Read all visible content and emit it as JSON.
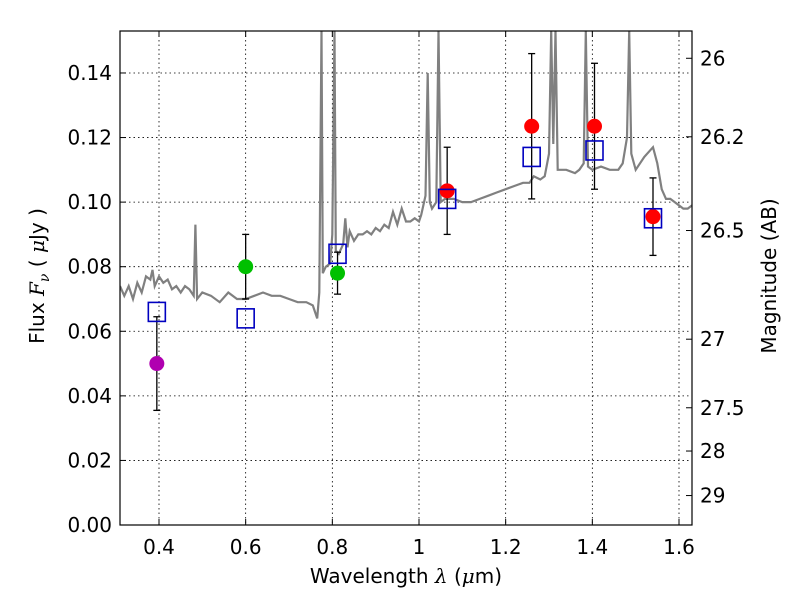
{
  "chart_data": {
    "type": "scatter",
    "xlabel": "Wavelength",
    "xlabel_symbol": "λ",
    "xlabel_unit_open": "(",
    "xlabel_unit_mu": "μ",
    "xlabel_unit_rest": "m)",
    "ylabel": "Flux",
    "ylabel_symbol": "F",
    "ylabel_subscript": "ν",
    "ylabel_unit_open": "(",
    "ylabel_unit_mu": "μ",
    "ylabel_unit_rest": "Jy )",
    "ylabel_right": "Magnitude (AB)",
    "xlim": [
      0.31,
      1.63
    ],
    "ylim": [
      0.0,
      0.153
    ],
    "grid": true,
    "x_ticks": [
      {
        "v": 0.4,
        "label": "0.4"
      },
      {
        "v": 0.6,
        "label": "0.6"
      },
      {
        "v": 0.8,
        "label": "0.8"
      },
      {
        "v": 1.0,
        "label": "1"
      },
      {
        "v": 1.2,
        "label": "1.2"
      },
      {
        "v": 1.4,
        "label": "1.4"
      },
      {
        "v": 1.6,
        "label": "1.6"
      }
    ],
    "y_ticks": [
      {
        "v": 0.0,
        "label": "0.00"
      },
      {
        "v": 0.02,
        "label": "0.02"
      },
      {
        "v": 0.04,
        "label": "0.04"
      },
      {
        "v": 0.06,
        "label": "0.06"
      },
      {
        "v": 0.08,
        "label": "0.08"
      },
      {
        "v": 0.1,
        "label": "0.10"
      },
      {
        "v": 0.12,
        "label": "0.12"
      },
      {
        "v": 0.14,
        "label": "0.14"
      }
    ],
    "mag_ticks": [
      {
        "mag": 26,
        "label": "26"
      },
      {
        "mag": 26.2,
        "label": "26.2"
      },
      {
        "mag": 26.5,
        "label": "26.5"
      },
      {
        "mag": 27,
        "label": "27"
      },
      {
        "mag": 27.5,
        "label": "27.5"
      },
      {
        "mag": 28,
        "label": "28"
      },
      {
        "mag": 29,
        "label": "29"
      }
    ],
    "observed": [
      {
        "x": 0.395,
        "y": 0.05,
        "err": 0.0145,
        "color": "#b000b0"
      },
      {
        "x": 0.6,
        "y": 0.08,
        "err": 0.01,
        "color": "#00c000"
      },
      {
        "x": 0.812,
        "y": 0.078,
        "err": 0.0065,
        "color": "#00c000"
      },
      {
        "x": 1.065,
        "y": 0.1035,
        "err": 0.0135,
        "color": "#ff0000"
      },
      {
        "x": 1.26,
        "y": 0.1235,
        "err": 0.0225,
        "color": "#ff0000"
      },
      {
        "x": 1.405,
        "y": 0.1235,
        "err": 0.0195,
        "color": "#ff0000"
      },
      {
        "x": 1.54,
        "y": 0.0955,
        "err": 0.012,
        "color": "#ff0000"
      }
    ],
    "model_points": [
      {
        "x": 0.395,
        "y": 0.066
      },
      {
        "x": 0.6,
        "y": 0.064
      },
      {
        "x": 0.812,
        "y": 0.084
      },
      {
        "x": 1.065,
        "y": 0.101
      },
      {
        "x": 1.26,
        "y": 0.114
      },
      {
        "x": 1.405,
        "y": 0.116
      },
      {
        "x": 1.54,
        "y": 0.095
      }
    ],
    "model_spectrum": [
      [
        0.31,
        0.074
      ],
      [
        0.32,
        0.071
      ],
      [
        0.33,
        0.074
      ],
      [
        0.34,
        0.07
      ],
      [
        0.35,
        0.075
      ],
      [
        0.36,
        0.072
      ],
      [
        0.37,
        0.077
      ],
      [
        0.38,
        0.076
      ],
      [
        0.385,
        0.079
      ],
      [
        0.39,
        0.074
      ],
      [
        0.4,
        0.077
      ],
      [
        0.41,
        0.075
      ],
      [
        0.42,
        0.076
      ],
      [
        0.43,
        0.073
      ],
      [
        0.44,
        0.074
      ],
      [
        0.45,
        0.072
      ],
      [
        0.46,
        0.074
      ],
      [
        0.47,
        0.073
      ],
      [
        0.48,
        0.071
      ],
      [
        0.484,
        0.093
      ],
      [
        0.488,
        0.07
      ],
      [
        0.5,
        0.072
      ],
      [
        0.52,
        0.071
      ],
      [
        0.54,
        0.069
      ],
      [
        0.56,
        0.072
      ],
      [
        0.58,
        0.07
      ],
      [
        0.6,
        0.07
      ],
      [
        0.62,
        0.071
      ],
      [
        0.64,
        0.072
      ],
      [
        0.66,
        0.071
      ],
      [
        0.68,
        0.071
      ],
      [
        0.7,
        0.07
      ],
      [
        0.72,
        0.069
      ],
      [
        0.74,
        0.069
      ],
      [
        0.755,
        0.068
      ],
      [
        0.76,
        0.066
      ],
      [
        0.765,
        0.064
      ],
      [
        0.77,
        0.072
      ],
      [
        0.775,
        0.153
      ],
      [
        0.778,
        0.078
      ],
      [
        0.785,
        0.08
      ],
      [
        0.795,
        0.081
      ],
      [
        0.8,
        0.09
      ],
      [
        0.805,
        0.153
      ],
      [
        0.808,
        0.085
      ],
      [
        0.815,
        0.084
      ],
      [
        0.825,
        0.087
      ],
      [
        0.83,
        0.095
      ],
      [
        0.835,
        0.086
      ],
      [
        0.84,
        0.091
      ],
      [
        0.85,
        0.088
      ],
      [
        0.86,
        0.09
      ],
      [
        0.87,
        0.09
      ],
      [
        0.88,
        0.091
      ],
      [
        0.89,
        0.09
      ],
      [
        0.9,
        0.092
      ],
      [
        0.91,
        0.091
      ],
      [
        0.92,
        0.093
      ],
      [
        0.93,
        0.092
      ],
      [
        0.94,
        0.097
      ],
      [
        0.95,
        0.093
      ],
      [
        0.96,
        0.098
      ],
      [
        0.97,
        0.094
      ],
      [
        0.98,
        0.094
      ],
      [
        0.99,
        0.095
      ],
      [
        1.0,
        0.094
      ],
      [
        1.005,
        0.096
      ],
      [
        1.015,
        0.102
      ],
      [
        1.02,
        0.14
      ],
      [
        1.025,
        0.1
      ],
      [
        1.03,
        0.098
      ],
      [
        1.04,
        0.1
      ],
      [
        1.045,
        0.153
      ],
      [
        1.05,
        0.1
      ],
      [
        1.06,
        0.101
      ],
      [
        1.08,
        0.101
      ],
      [
        1.1,
        0.1
      ],
      [
        1.12,
        0.1
      ],
      [
        1.14,
        0.101
      ],
      [
        1.16,
        0.102
      ],
      [
        1.18,
        0.103
      ],
      [
        1.2,
        0.104
      ],
      [
        1.22,
        0.105
      ],
      [
        1.24,
        0.106
      ],
      [
        1.255,
        0.106
      ],
      [
        1.265,
        0.108
      ],
      [
        1.28,
        0.107
      ],
      [
        1.29,
        0.108
      ],
      [
        1.3,
        0.115
      ],
      [
        1.305,
        0.153
      ],
      [
        1.31,
        0.118
      ],
      [
        1.315,
        0.153
      ],
      [
        1.32,
        0.11
      ],
      [
        1.34,
        0.11
      ],
      [
        1.36,
        0.109
      ],
      [
        1.37,
        0.11
      ],
      [
        1.38,
        0.112
      ],
      [
        1.385,
        0.153
      ],
      [
        1.39,
        0.111
      ],
      [
        1.4,
        0.11
      ],
      [
        1.42,
        0.111
      ],
      [
        1.44,
        0.11
      ],
      [
        1.46,
        0.11
      ],
      [
        1.47,
        0.112
      ],
      [
        1.48,
        0.12
      ],
      [
        1.485,
        0.153
      ],
      [
        1.49,
        0.115
      ],
      [
        1.5,
        0.11
      ],
      [
        1.52,
        0.114
      ],
      [
        1.54,
        0.117
      ],
      [
        1.55,
        0.112
      ],
      [
        1.56,
        0.104
      ],
      [
        1.57,
        0.101
      ],
      [
        1.58,
        0.101
      ],
      [
        1.59,
        0.1
      ],
      [
        1.6,
        0.099
      ],
      [
        1.61,
        0.098
      ],
      [
        1.62,
        0.098
      ],
      [
        1.63,
        0.099
      ]
    ]
  },
  "colors": {
    "spectrum": "#808080",
    "model_square": "#0000c0",
    "errorbar": "#000000",
    "grid": "#000000"
  }
}
